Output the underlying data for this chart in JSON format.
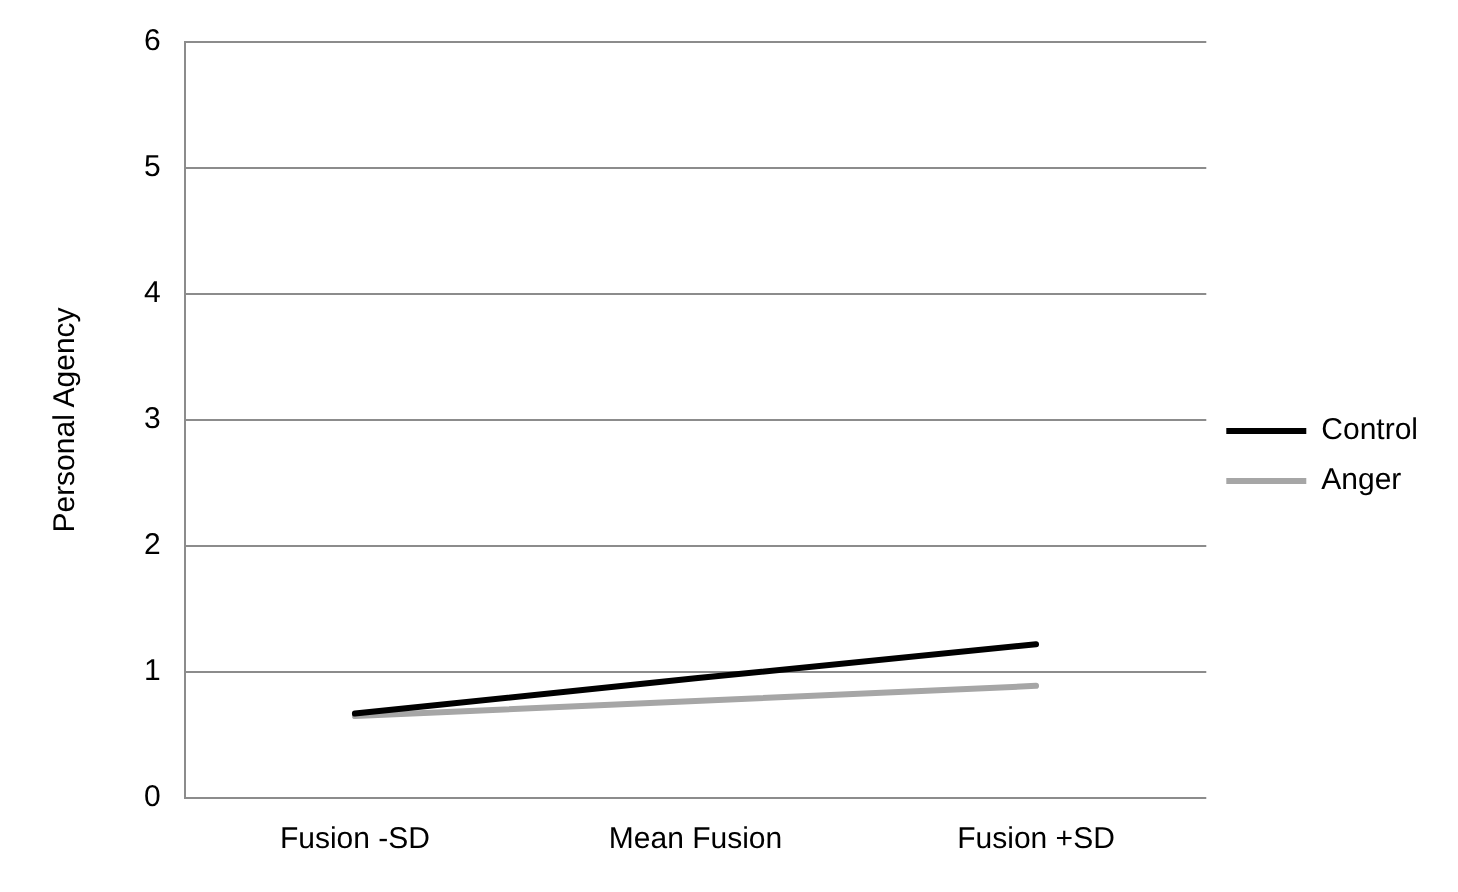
{
  "chart_data": {
    "type": "line",
    "ylabel": "Personal Agency",
    "categories": [
      "Fusion -SD",
      "Mean Fusion",
      "Fusion +SD"
    ],
    "series": [
      {
        "name": "Control",
        "color": "#000000",
        "values": [
          0.67,
          0.95,
          1.22
        ]
      },
      {
        "name": "Anger",
        "color": "#a6a6a6",
        "values": [
          0.65,
          0.77,
          0.89
        ]
      }
    ],
    "ylim": [
      0,
      6
    ],
    "yticks": [
      0,
      1,
      2,
      3,
      4,
      5,
      6
    ],
    "grid": "y",
    "legend": "right",
    "marker": "none"
  }
}
